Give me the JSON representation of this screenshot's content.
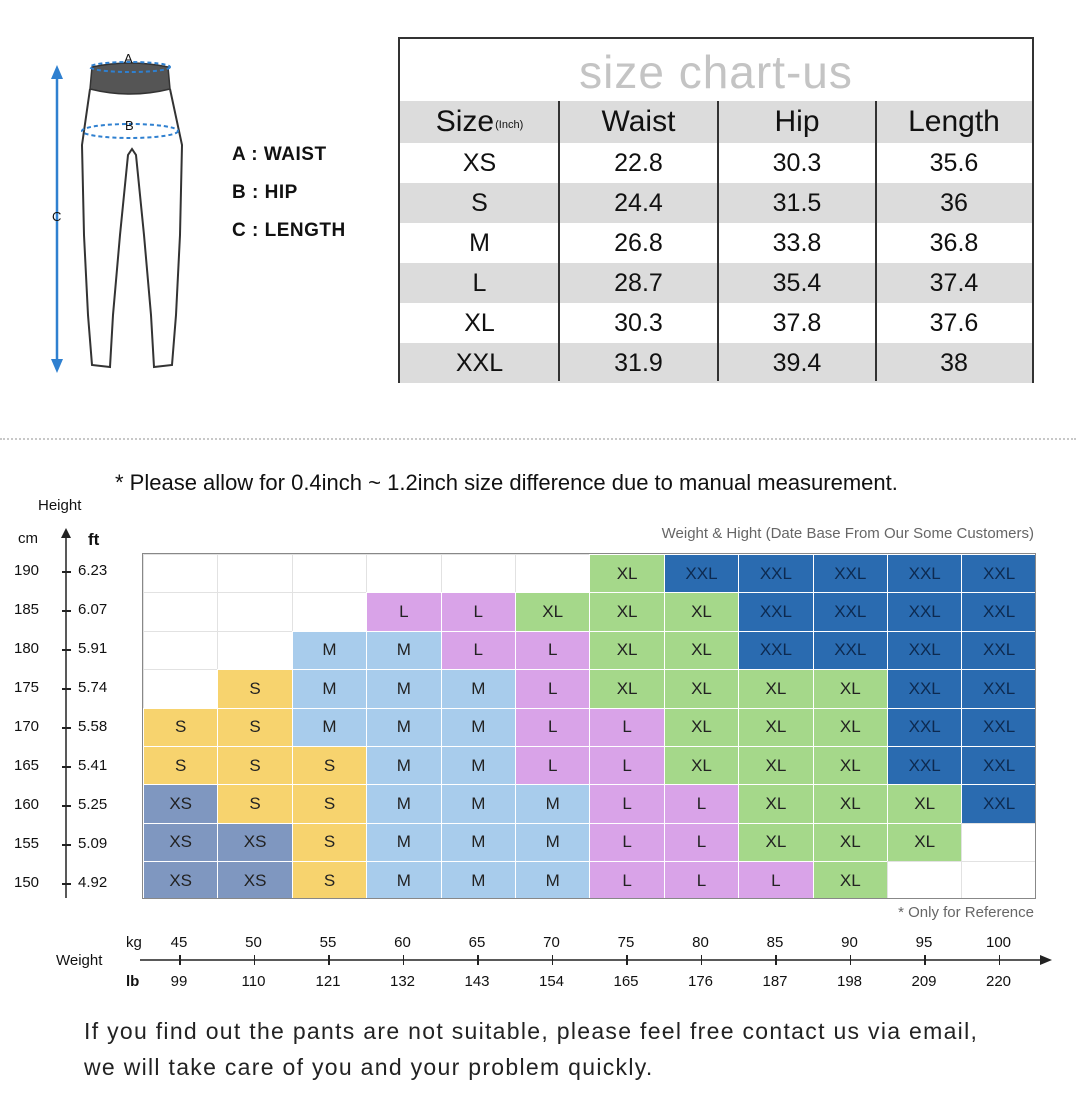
{
  "diagram": {
    "label_a": "A",
    "label_b": "B",
    "label_c": "C",
    "legend": [
      "A : WAIST",
      "B : HIP",
      "C : LENGTH"
    ]
  },
  "size_table": {
    "title": "size chart-us",
    "header": {
      "size": "Size",
      "unit": "(Inch)",
      "waist": "Waist",
      "hip": "Hip",
      "length": "Length"
    },
    "rows": [
      [
        "XS",
        "22.8",
        "30.3",
        "35.6"
      ],
      [
        "S",
        "24.4",
        "31.5",
        "36"
      ],
      [
        "M",
        "26.8",
        "33.8",
        "36.8"
      ],
      [
        "L",
        "28.7",
        "35.4",
        "37.4"
      ],
      [
        "XL",
        "30.3",
        "37.8",
        "37.6"
      ],
      [
        "XXL",
        "31.9",
        "39.4",
        "38"
      ]
    ]
  },
  "note": "* Please allow for 0.4inch ~ 1.2inch size difference due to manual measurement.",
  "subnote": "Weight & Hight (Date Base From Our Some Customers)",
  "ref_note": "* Only for Reference",
  "height_axis": {
    "title": "Height",
    "unit_cm": "cm",
    "unit_ft": "ft",
    "cm": [
      "190",
      "185",
      "180",
      "175",
      "170",
      "165",
      "160",
      "155",
      "150"
    ],
    "ft": [
      "6.23",
      "6.07",
      "5.91",
      "5.74",
      "5.58",
      "5.41",
      "5.25",
      "5.09",
      "4.92"
    ]
  },
  "weight_axis": {
    "title": "Weight",
    "unit_kg": "kg",
    "unit_lb": "lb",
    "kg": [
      "45",
      "50",
      "55",
      "60",
      "65",
      "70",
      "75",
      "80",
      "85",
      "90",
      "95",
      "100"
    ],
    "lb": [
      "99",
      "110",
      "121",
      "132",
      "143",
      "154",
      "165",
      "176",
      "187",
      "198",
      "209",
      "220"
    ]
  },
  "size_colors": {
    "": "#ffffff",
    "XS": "#7f97c0",
    "S": "#f7d36e",
    "M": "#a8ccec",
    "L": "#d9a3e8",
    "XL": "#a5d88a",
    "XXL": "#2a6bb0"
  },
  "grid": [
    [
      "",
      "",
      "",
      "",
      "",
      "",
      "XL",
      "XXL",
      "XXL",
      "XXL",
      "XXL",
      "XXL"
    ],
    [
      "",
      "",
      "",
      "L",
      "L",
      "XL",
      "XL",
      "XL",
      "XXL",
      "XXL",
      "XXL",
      "XXL"
    ],
    [
      "",
      "",
      "M",
      "M",
      "L",
      "L",
      "XL",
      "XL",
      "XXL",
      "XXL",
      "XXL",
      "XXL"
    ],
    [
      "",
      "S",
      "M",
      "M",
      "M",
      "L",
      "XL",
      "XL",
      "XL",
      "XL",
      "XXL",
      "XXL"
    ],
    [
      "S",
      "S",
      "M",
      "M",
      "M",
      "L",
      "L",
      "XL",
      "XL",
      "XL",
      "XXL",
      "XXL"
    ],
    [
      "S",
      "S",
      "S",
      "M",
      "M",
      "L",
      "L",
      "XL",
      "XL",
      "XL",
      "XXL",
      "XXL"
    ],
    [
      "XS",
      "S",
      "S",
      "M",
      "M",
      "M",
      "L",
      "L",
      "XL",
      "XL",
      "XL",
      "XXL"
    ],
    [
      "XS",
      "XS",
      "S",
      "M",
      "M",
      "M",
      "L",
      "L",
      "XL",
      "XL",
      "XL",
      ""
    ],
    [
      "XS",
      "XS",
      "S",
      "M",
      "M",
      "M",
      "L",
      "L",
      "L",
      "XL",
      "",
      ""
    ]
  ],
  "footer": [
    "If you find out the pants are not suitable, please feel free contact us via email,",
    "we will take care of you and your problem quickly."
  ]
}
